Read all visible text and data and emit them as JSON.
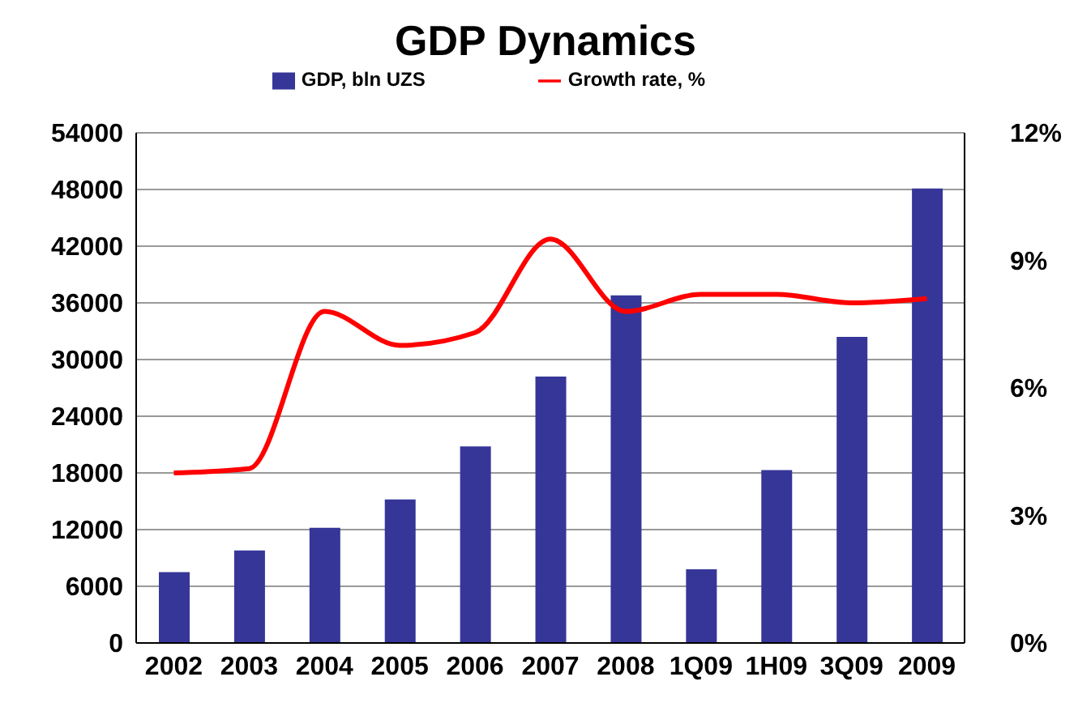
{
  "chart_data": {
    "type": "bar",
    "title": "GDP Dynamics",
    "categories": [
      "2002",
      "2003",
      "2004",
      "2005",
      "2006",
      "2007",
      "2008",
      "1Q09",
      "1H09",
      "3Q09",
      "2009"
    ],
    "series": [
      {
        "name": "GDP, bln UZS",
        "color": "#363699",
        "values": [
          7500,
          9800,
          12200,
          15200,
          20800,
          28200,
          36800,
          7800,
          18300,
          32400,
          48100
        ]
      },
      {
        "name": "Growth rate, %",
        "type": "line",
        "axis": "y2",
        "color": "#ff0000",
        "values": [
          4.0,
          4.1,
          7.8,
          7.0,
          7.3,
          9.5,
          7.8,
          8.2,
          8.2,
          8.0,
          8.1
        ]
      }
    ],
    "ylim": [
      0,
      54000
    ],
    "yticks": [
      0,
      6000,
      12000,
      18000,
      24000,
      30000,
      36000,
      42000,
      48000,
      54000
    ],
    "y2lim": [
      0,
      12
    ],
    "y2ticks": [
      {
        "value": 0,
        "label": "0%"
      },
      {
        "value": 3,
        "label": "3%"
      },
      {
        "value": 6,
        "label": "6%"
      },
      {
        "value": 9,
        "label": "9%"
      },
      {
        "value": 12,
        "label": "12%"
      }
    ],
    "grid": "y",
    "legend": "top",
    "marker": "none"
  }
}
